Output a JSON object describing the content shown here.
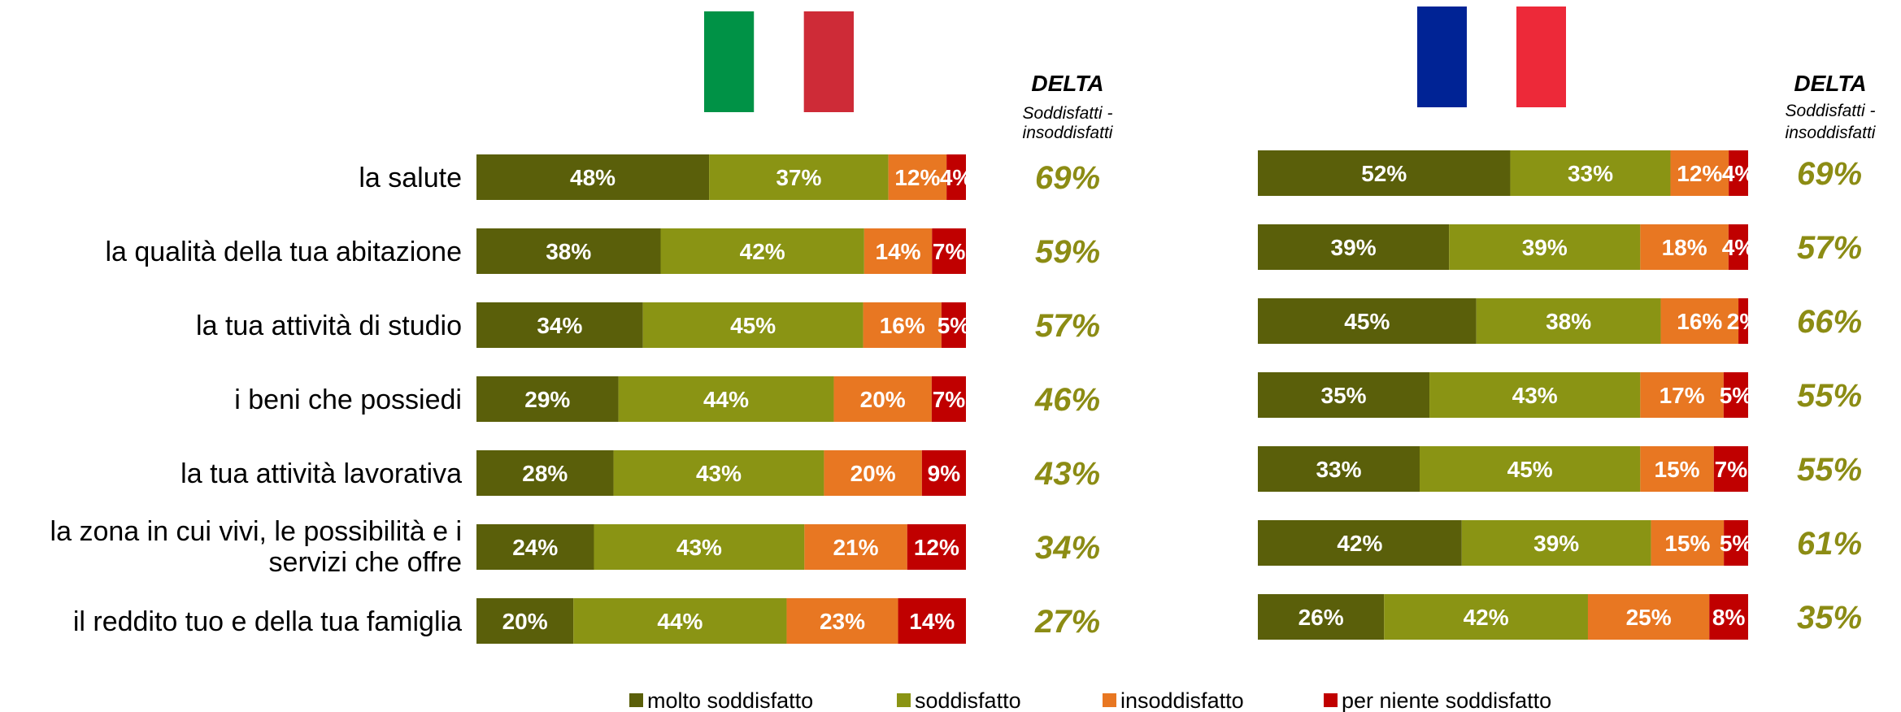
{
  "chart_data": [
    {
      "type": "bar",
      "stacked": true,
      "orientation": "horizontal",
      "flag": "italy",
      "categories": [
        "la salute",
        "la qualità della tua abitazione",
        "la tua attività di studio",
        "i beni che possiedi",
        "la tua attività lavorativa",
        "la zona in cui vivi, le possibilità e i servizi che offre",
        "il reddito tuo e della tua famiglia"
      ],
      "series": [
        {
          "name": "molto soddisfatto",
          "values": [
            48,
            38,
            34,
            29,
            28,
            24,
            20
          ]
        },
        {
          "name": "soddisfatto",
          "values": [
            37,
            42,
            45,
            44,
            43,
            43,
            44
          ]
        },
        {
          "name": "insoddisfatto",
          "values": [
            12,
            14,
            16,
            20,
            20,
            21,
            23
          ]
        },
        {
          "name": "per niente soddisfatto",
          "values": [
            4,
            7,
            5,
            7,
            9,
            12,
            14
          ]
        }
      ],
      "delta": [
        69,
        59,
        57,
        46,
        43,
        34,
        27
      ],
      "unit": "%"
    },
    {
      "type": "bar",
      "stacked": true,
      "orientation": "horizontal",
      "flag": "france",
      "categories": [
        "la salute",
        "la qualità della tua abitazione",
        "la tua attività di studio",
        "i beni che possiedi",
        "la tua attività lavorativa",
        "la zona in cui vivi, le possibilità e i servizi che offre",
        "il reddito tuo e della tua famiglia"
      ],
      "series": [
        {
          "name": "molto soddisfatto",
          "values": [
            52,
            39,
            45,
            35,
            33,
            42,
            26
          ]
        },
        {
          "name": "soddisfatto",
          "values": [
            33,
            39,
            38,
            43,
            45,
            39,
            42
          ]
        },
        {
          "name": "insoddisfatto",
          "values": [
            12,
            18,
            16,
            17,
            15,
            15,
            25
          ]
        },
        {
          "name": "per niente soddisfatto",
          "values": [
            4,
            4,
            2,
            5,
            7,
            5,
            8
          ]
        }
      ],
      "delta": [
        69,
        57,
        66,
        55,
        55,
        61,
        35
      ],
      "unit": "%"
    }
  ],
  "category_labels": [
    [
      "la salute"
    ],
    [
      "la qualità della tua abitazione"
    ],
    [
      "la tua attività di studio"
    ],
    [
      "i beni che possiedi"
    ],
    [
      "la tua attività lavorativa"
    ],
    [
      "la zona in cui vivi, le possibilità e i",
      "servizi che offre"
    ],
    [
      "il reddito tuo e della tua famiglia"
    ]
  ],
  "delta_header": {
    "title": "DELTA",
    "subtitle_line1": "Soddisfatti -",
    "subtitle_line2": "insoddisfatti"
  },
  "colors": {
    "molto soddisfatto": "#5a5f0a",
    "soddisfatto": "#8a9414",
    "insoddisfatto": "#e87722",
    "per niente soddisfatto": "#c00000",
    "delta_text": "#8c8c14",
    "italy": [
      "#009246",
      "#ffffff",
      "#ce2b37"
    ],
    "france": [
      "#002395",
      "#ffffff",
      "#ed2939"
    ]
  },
  "legend": {
    "placement": "bottom-center",
    "items": [
      "molto soddisfatto",
      "soddisfatto",
      "insoddisfatto",
      "per niente soddisfatto"
    ]
  }
}
